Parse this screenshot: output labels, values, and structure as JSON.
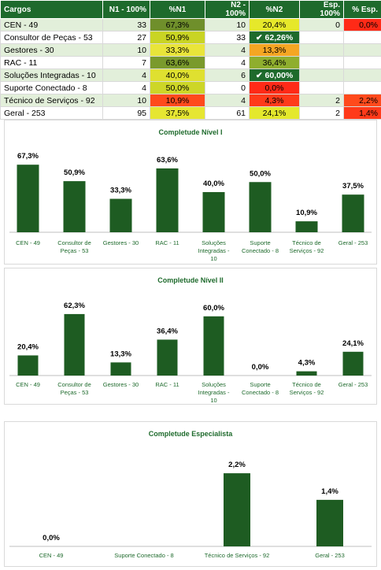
{
  "table": {
    "headers": [
      "Cargos",
      "N1 - 100%",
      "%N1",
      "N2 - 100%",
      "%N2",
      "Esp. 100%",
      "% Esp."
    ],
    "rows": [
      {
        "cargo": "CEN - 49",
        "n1": "33",
        "pn1": "67,3%",
        "pn1_color": "#6f8f2b",
        "n2": "10",
        "pn2": "20,4%",
        "pn2_color": "#e6e82a",
        "pn2_check": false,
        "esp": "0",
        "pesp": "0,0%",
        "pesp_color": "#ff2a17"
      },
      {
        "cargo": "Consultor de Peças - 53",
        "n1": "27",
        "pn1": "50,9%",
        "pn1_color": "#c9d424",
        "n2": "33",
        "pn2": "62,26%",
        "pn2_color": "#1e6a2c",
        "pn2_check": true,
        "esp": "",
        "pesp": "",
        "pesp_color": ""
      },
      {
        "cargo": "Gestores - 30",
        "n1": "10",
        "pn1": "33,3%",
        "pn1_color": "#e9e53a",
        "n2": "4",
        "pn2": "13,3%",
        "pn2_color": "#f5a623",
        "pn2_check": false,
        "esp": "",
        "pesp": "",
        "pesp_color": ""
      },
      {
        "cargo": "RAC - 11",
        "n1": "7",
        "pn1": "63,6%",
        "pn1_color": "#7a9a2c",
        "n2": "4",
        "pn2": "36,4%",
        "pn2_color": "#8fae2e",
        "pn2_check": false,
        "esp": "",
        "pesp": "",
        "pesp_color": ""
      },
      {
        "cargo": "Soluções Integradas - 10",
        "n1": "4",
        "pn1": "40,0%",
        "pn1_color": "#dfe030",
        "n2": "6",
        "pn2": "60,00%",
        "pn2_color": "#1e6a2c",
        "pn2_check": true,
        "esp": "",
        "pesp": "",
        "pesp_color": ""
      },
      {
        "cargo": "Suporte Conectado - 8",
        "n1": "4",
        "pn1": "50,0%",
        "pn1_color": "#cdd628",
        "n2": "0",
        "pn2": "0,0%",
        "pn2_color": "#ff2a17",
        "pn2_check": false,
        "esp": "",
        "pesp": "",
        "pesp_color": ""
      },
      {
        "cargo": "Técnico de Serviços - 92",
        "n1": "10",
        "pn1": "10,9%",
        "pn1_color": "#ff4a1c",
        "n2": "4",
        "pn2": "4,3%",
        "pn2_color": "#ff3a1a",
        "pn2_check": false,
        "esp": "2",
        "pesp": "2,2%",
        "pesp_color": "#ff4a1c"
      },
      {
        "cargo": "Geral - 253",
        "n1": "95",
        "pn1": "37,5%",
        "pn1_color": "#e6e632",
        "n2": "61",
        "pn2": "24,1%",
        "pn2_color": "#e4e82c",
        "pn2_check": false,
        "esp": "2",
        "pesp": "1,4%",
        "pesp_color": "#ff3a1a"
      }
    ]
  },
  "colors": {
    "header_bg": "#1e6a2c",
    "bar": "#1e5c22",
    "title": "#1e6a2c"
  },
  "chart_data": [
    {
      "type": "bar",
      "title": "Completude Nível I",
      "categories": [
        "CEN - 49",
        "Consultor de Peças - 53",
        "Gestores - 30",
        "RAC - 11",
        "Soluções Integradas - 10",
        "Suporte Conectado - 8",
        "Técnico de Serviços - 92",
        "Geral - 253"
      ],
      "values": [
        67.3,
        50.9,
        33.3,
        63.6,
        40.0,
        50.0,
        10.9,
        37.5
      ],
      "labels": [
        "67,3%",
        "50,9%",
        "33,3%",
        "63,6%",
        "40,0%",
        "50,0%",
        "10,9%",
        "37,5%"
      ],
      "ylim": [
        0,
        80
      ],
      "grid": false
    },
    {
      "type": "bar",
      "title": "Completude Nível II",
      "categories": [
        "CEN - 49",
        "Consultor de Peças - 53",
        "Gestores - 30",
        "RAC - 11",
        "Soluções Integradas - 10",
        "Suporte Conectado - 8",
        "Técnico de Serviços - 92",
        "Geral - 253"
      ],
      "values": [
        20.4,
        62.3,
        13.3,
        36.4,
        60.0,
        0.0,
        4.3,
        24.1
      ],
      "labels": [
        "20,4%",
        "62,3%",
        "13,3%",
        "36,4%",
        "60,0%",
        "0,0%",
        "4,3%",
        "24,1%"
      ],
      "ylim": [
        0,
        75
      ],
      "grid": false
    },
    {
      "type": "bar",
      "title": "Completude Especialista",
      "categories": [
        "CEN - 49",
        "Suporte Conectado - 8",
        "Técnico de Serviços - 92",
        "Geral - 253"
      ],
      "values": [
        0.0,
        null,
        2.2,
        1.4
      ],
      "labels": [
        "0,0%",
        "",
        "2,2%",
        "1,4%"
      ],
      "ylim": [
        0,
        2.7
      ],
      "grid": false
    }
  ]
}
